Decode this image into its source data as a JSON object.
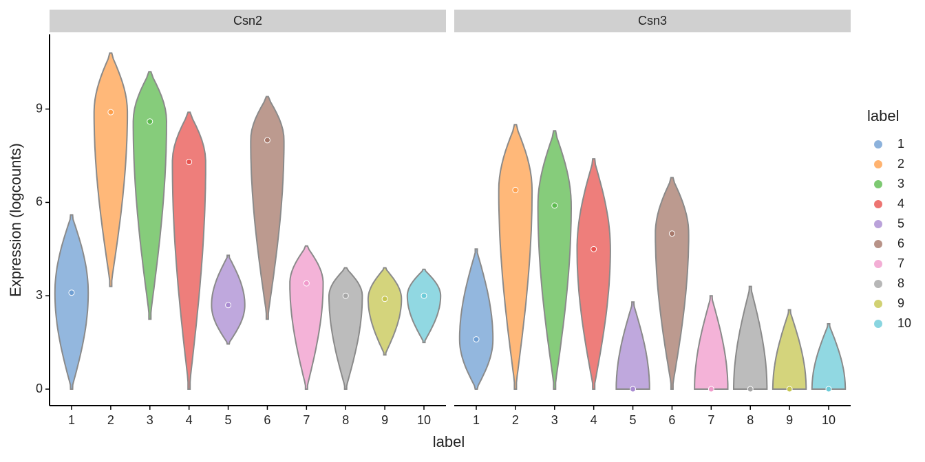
{
  "chart_data": [
    {
      "type": "violin",
      "title": "Csn2",
      "categories": [
        "1",
        "2",
        "3",
        "4",
        "5",
        "6",
        "7",
        "8",
        "9",
        "10"
      ],
      "min": [
        0,
        3.3,
        2.25,
        0,
        1.45,
        2.25,
        0,
        0,
        1.1,
        1.5
      ],
      "median": [
        3.1,
        8.9,
        8.6,
        7.3,
        2.7,
        8.0,
        3.4,
        3.0,
        2.9,
        3.0
      ],
      "max": [
        5.6,
        10.8,
        10.2,
        8.9,
        4.3,
        9.4,
        4.6,
        3.9,
        3.9,
        3.85
      ],
      "colors": [
        "#6f9fd3",
        "#ffa04c",
        "#5dbb4f",
        "#e8534f",
        "#a98bd1",
        "#a6786a",
        "#f09acb",
        "#a5a5a5",
        "#c6c650",
        "#6ccbd8"
      ],
      "ylabel": "Expression (logcounts)",
      "xlabel": "label",
      "ylim": [
        -0.53,
        11.4
      ],
      "yticks": [
        0,
        3,
        6,
        9
      ]
    },
    {
      "type": "violin",
      "title": "Csn3",
      "categories": [
        "1",
        "2",
        "3",
        "4",
        "5",
        "6",
        "7",
        "8",
        "9",
        "10"
      ],
      "min": [
        0,
        0,
        0,
        0,
        0,
        0,
        0,
        0,
        0,
        0
      ],
      "median": [
        1.6,
        6.4,
        5.9,
        4.5,
        0,
        5.0,
        0,
        0,
        0,
        0
      ],
      "max": [
        4.5,
        8.5,
        8.3,
        7.4,
        2.8,
        6.8,
        3.0,
        3.3,
        2.55,
        2.1
      ],
      "colors": [
        "#6f9fd3",
        "#ffa04c",
        "#5dbb4f",
        "#e8534f",
        "#a98bd1",
        "#a6786a",
        "#f09acb",
        "#a5a5a5",
        "#c6c650",
        "#6ccbd8"
      ],
      "ylim": [
        -0.53,
        11.4
      ],
      "yticks": [
        0,
        3,
        6,
        9
      ]
    }
  ],
  "legend": {
    "title": "label",
    "labels": [
      "1",
      "2",
      "3",
      "4",
      "5",
      "6",
      "7",
      "8",
      "9",
      "10"
    ],
    "colors": [
      "#6f9fd3",
      "#ffa04c",
      "#5dbb4f",
      "#e8534f",
      "#a98bd1",
      "#a6786a",
      "#f09acb",
      "#a5a5a5",
      "#c6c650",
      "#6ccbd8"
    ]
  }
}
